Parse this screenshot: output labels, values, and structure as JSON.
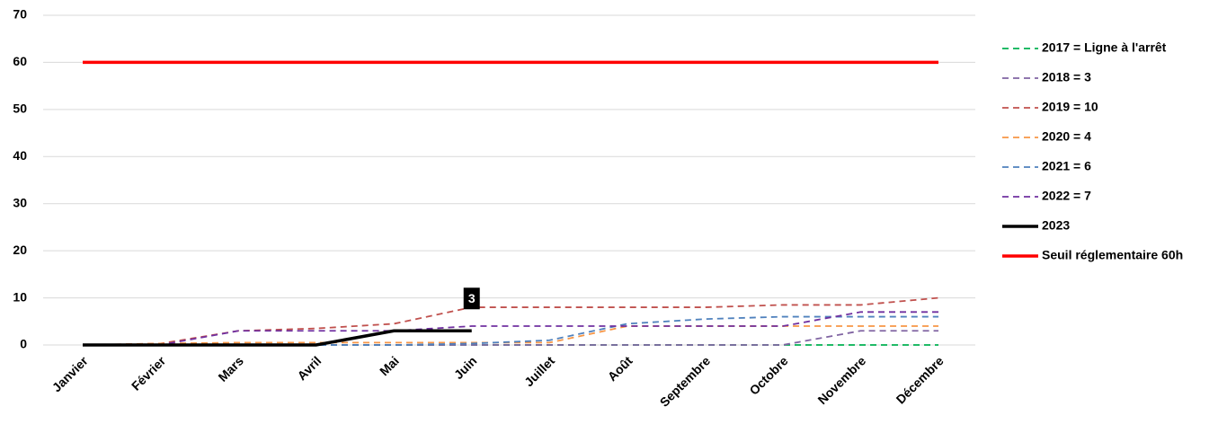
{
  "chart_data": {
    "type": "line",
    "categories": [
      "Janvier",
      "Février",
      "Mars",
      "Avril",
      "Mai",
      "Juin",
      "Juillet",
      "Août",
      "Septembre",
      "Octobre",
      "Novembre",
      "Décembre"
    ],
    "ylim": [
      0,
      70
    ],
    "yticks": [
      0,
      10,
      20,
      30,
      40,
      50,
      60,
      70
    ],
    "grid": true,
    "series": [
      {
        "name": "2017  = Ligne à l'arrêt",
        "color": "#00b050",
        "dashed": true,
        "values": [
          0,
          0,
          0,
          0,
          0,
          0,
          0,
          0,
          0,
          0,
          0,
          0
        ]
      },
      {
        "name": "2018 = 3",
        "color": "#8064a2",
        "dashed": true,
        "values": [
          0,
          0,
          0,
          0,
          0,
          0,
          0,
          0,
          0,
          0,
          3,
          3
        ]
      },
      {
        "name": "2019 = 10",
        "color": "#c0504d",
        "dashed": true,
        "values": [
          0,
          0.3,
          3,
          3.5,
          4.5,
          8,
          8,
          8,
          8,
          8.5,
          8.5,
          10
        ]
      },
      {
        "name": "2020 = 4",
        "color": "#f79646",
        "dashed": true,
        "values": [
          0,
          0.3,
          0.5,
          0.5,
          0.5,
          0.5,
          0.5,
          4,
          4,
          4,
          4,
          4
        ]
      },
      {
        "name": "2021 = 6",
        "color": "#4f81bd",
        "dashed": true,
        "values": [
          0,
          0,
          0,
          0,
          0,
          0.3,
          1,
          4.5,
          5.5,
          6,
          6,
          6
        ]
      },
      {
        "name": "2022 = 7",
        "color": "#7030a0",
        "dashed": true,
        "values": [
          0,
          0,
          3,
          3,
          3,
          4,
          4,
          4,
          4,
          4,
          7,
          7
        ]
      },
      {
        "name": "2023",
        "color": "#000000",
        "dashed": false,
        "values": [
          0,
          0,
          0,
          0,
          3,
          3,
          null,
          null,
          null,
          null,
          null,
          null
        ],
        "labeled_point": 5
      },
      {
        "name": "Seuil réglementaire 60h",
        "color": "#ff0000",
        "dashed": false,
        "values": [
          60,
          60,
          60,
          60,
          60,
          60,
          60,
          60,
          60,
          60,
          60,
          60
        ]
      }
    ]
  }
}
